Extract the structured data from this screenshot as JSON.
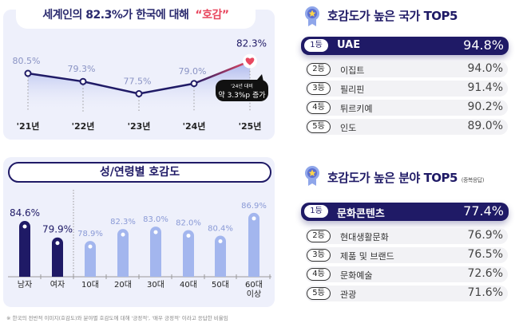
{
  "chart_data": [
    {
      "type": "line",
      "title": "세계인의 82.3%가 한국에 대해",
      "title_highlight": "“호감”",
      "categories": [
        "'21년",
        "'22년",
        "'23년",
        "'24년",
        "'25년"
      ],
      "values": [
        80.5,
        79.3,
        77.5,
        79.0,
        82.3
      ],
      "labels": [
        "80.5%",
        "79.3%",
        "77.5%",
        "79.0%",
        "82.3%"
      ],
      "annotation": {
        "line1": "'24년 대비",
        "line2": "약 3.3%p 증가"
      },
      "colors": {
        "line": "#1f1a66",
        "highlight": "#e8475f",
        "label": "#8a93c4"
      }
    },
    {
      "type": "bar",
      "title": "성/연령별 호감도",
      "categories": [
        "남자",
        "여자",
        "10대",
        "20대",
        "30대",
        "40대",
        "50대",
        "60대 이상"
      ],
      "values": [
        84.6,
        79.9,
        78.9,
        82.3,
        83.0,
        82.0,
        80.4,
        86.9
      ],
      "labels": [
        "84.6%",
        "79.9%",
        "78.9%",
        "82.3%",
        "83.0%",
        "82.0%",
        "80.4%",
        "86.9%"
      ],
      "colors": {
        "gender": "#1f1a66",
        "age": "#a3b6ee"
      }
    }
  ],
  "footnote": "※ 한국의 전반적 이미지(호감도)와 분야별 호감도에 대해 '긍정적', '매우 긍정적' 이라고 응답한 비율임",
  "countries": {
    "title": "호감도가 높은 국가 TOP5",
    "icon": "medal-icon",
    "items": [
      {
        "rank": "1등",
        "name": "UAE",
        "value": "94.8%"
      },
      {
        "rank": "2등",
        "name": "이집트",
        "value": "94.0%"
      },
      {
        "rank": "3등",
        "name": "필리핀",
        "value": "91.4%"
      },
      {
        "rank": "4등",
        "name": "튀르키예",
        "value": "90.2%"
      },
      {
        "rank": "5등",
        "name": "인도",
        "value": "89.0%"
      }
    ]
  },
  "fields": {
    "title": "호감도가 높은 분야 TOP5",
    "note": "(중복응답)",
    "icon": "medal-icon",
    "items": [
      {
        "rank": "1등",
        "name": "문화콘텐츠",
        "value": "77.4%"
      },
      {
        "rank": "2등",
        "name": "현대생활문화",
        "value": "76.9%"
      },
      {
        "rank": "3등",
        "name": "제품 및 브랜드",
        "value": "76.5%"
      },
      {
        "rank": "4등",
        "name": "문화예술",
        "value": "72.6%"
      },
      {
        "rank": "5등",
        "name": "관광",
        "value": "71.6%"
      }
    ]
  }
}
